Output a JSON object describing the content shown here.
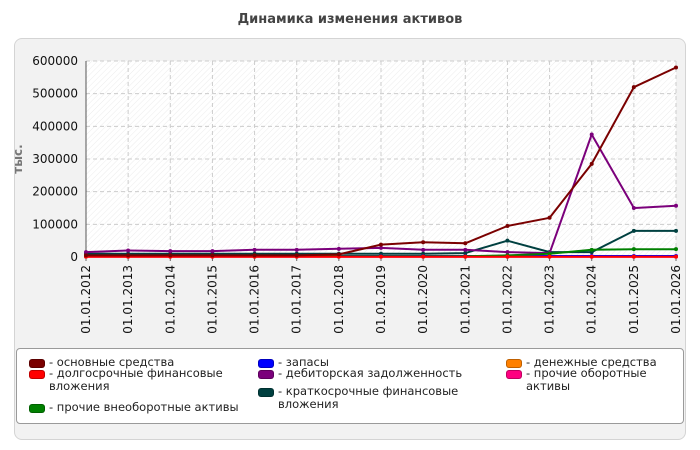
{
  "chart_data": {
    "type": "line",
    "title": "Динамика изменения активов",
    "ylabel": "тыс.",
    "xlabel": "",
    "ylim": [
      0,
      600000
    ],
    "yticks": [
      0,
      100000,
      200000,
      300000,
      400000,
      500000,
      600000
    ],
    "grid": true,
    "legend_position": "bottom",
    "categories": [
      "01.01.2012",
      "01.01.2013",
      "01.01.2014",
      "01.01.2015",
      "01.01.2016",
      "01.01.2017",
      "01.01.2018",
      "01.01.2019",
      "01.01.2020",
      "01.01.2021",
      "01.01.2022",
      "01.01.2023",
      "01.01.2024",
      "01.01.2025",
      "01.01.2026"
    ],
    "series": [
      {
        "name": "основные средства",
        "color": "#7a0000",
        "values": [
          5000,
          5000,
          5000,
          5000,
          5000,
          5000,
          8000,
          38000,
          45000,
          42000,
          95000,
          120000,
          285000,
          520000,
          580000
        ]
      },
      {
        "name": "долгосрочные финансовые вложения",
        "color": "#ff0000",
        "values": [
          1000,
          1000,
          1000,
          1000,
          1000,
          1000,
          1000,
          1000,
          1000,
          1000,
          1000,
          1000,
          1000,
          1000,
          1000
        ]
      },
      {
        "name": "прочие внеоборотные активы",
        "color": "#008000",
        "values": [
          2000,
          2000,
          2000,
          2000,
          2000,
          2000,
          2000,
          2000,
          2000,
          2000,
          5000,
          10000,
          22000,
          24000,
          24000
        ]
      },
      {
        "name": "запасы",
        "color": "#0000ff",
        "values": [
          3000,
          3000,
          3000,
          3000,
          3000,
          3000,
          3000,
          3000,
          3000,
          3000,
          3000,
          3000,
          3000,
          3000,
          3000
        ]
      },
      {
        "name": "дебиторская задолженность",
        "color": "#7b007b",
        "values": [
          15000,
          20000,
          18000,
          18000,
          22000,
          22000,
          25000,
          28000,
          22000,
          22000,
          15000,
          12000,
          375000,
          150000,
          157000
        ]
      },
      {
        "name": "краткосрочные финансовые вложения",
        "color": "#004040",
        "values": [
          10000,
          10000,
          10000,
          10000,
          10000,
          10000,
          10000,
          10000,
          10000,
          12000,
          50000,
          15000,
          15000,
          80000,
          80000
        ]
      },
      {
        "name": "денежные средства",
        "color": "#ff8000",
        "values": [
          2000,
          2000,
          2000,
          2000,
          2000,
          2000,
          2000,
          2000,
          2000,
          2000,
          2000,
          2000,
          2000,
          2000,
          2000
        ]
      },
      {
        "name": "прочие оборотные активы",
        "color": "#ff0080",
        "values": [
          1000,
          1000,
          1000,
          1000,
          1000,
          1000,
          1000,
          1000,
          1000,
          1000,
          1000,
          1000,
          1000,
          1000,
          1000
        ]
      }
    ]
  },
  "legend": {
    "prefix": "- ",
    "items": [
      {
        "label": "основные средства",
        "color": "#7a0000"
      },
      {
        "label": "долгосрочные финансовые вложения",
        "color": "#ff0000"
      },
      {
        "label": "прочие внеоборотные активы",
        "color": "#008000"
      },
      {
        "label": "запасы",
        "color": "#0000ff"
      },
      {
        "label": "дебиторская задолженность",
        "color": "#7b007b"
      },
      {
        "label": "краткосрочные финансовые вложения",
        "color": "#004040"
      },
      {
        "label": "денежные средства",
        "color": "#ff8000"
      },
      {
        "label": "прочие оборотные активы",
        "color": "#ff0080"
      }
    ]
  }
}
